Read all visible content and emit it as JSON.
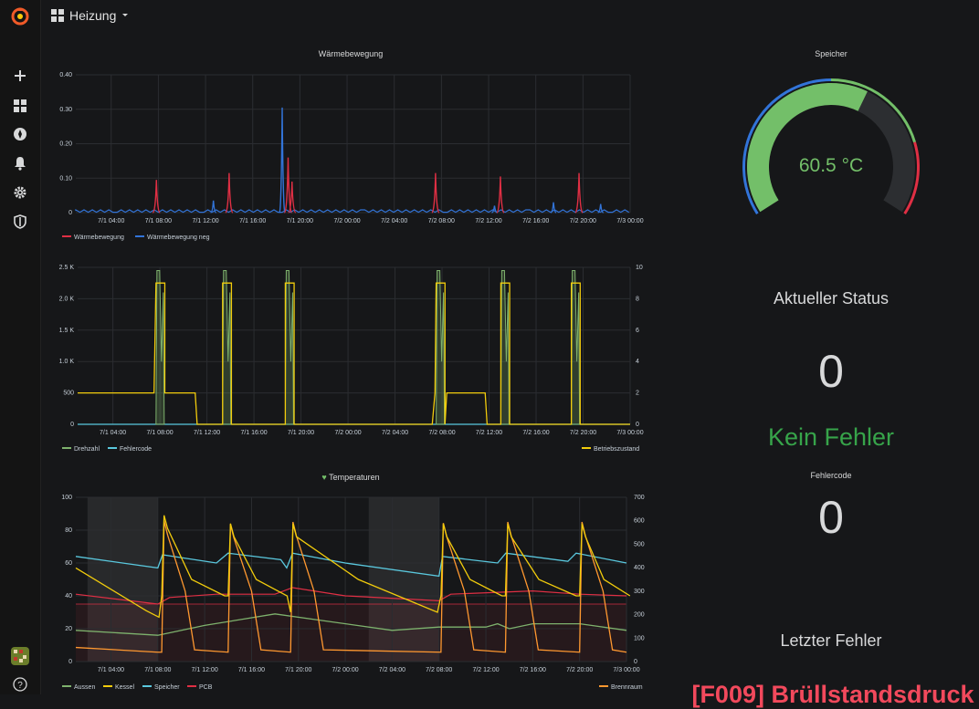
{
  "app": {
    "dashboard_title": "Heizung"
  },
  "sidebar": {
    "icons": [
      "grafana-logo-icon",
      "plus-icon",
      "dashboards-icon",
      "explore-icon",
      "alerting-icon",
      "gear-icon",
      "shield-icon",
      "avatar",
      "help-icon"
    ]
  },
  "colors": {
    "red": "#e02f44",
    "blue": "#3274d9",
    "green": "#73bf69",
    "yellow": "#f2cc0c",
    "cyan": "#5ac8de",
    "orange": "#ff9830",
    "olive": "#7eb26d"
  },
  "panels": {
    "waerme": {
      "title": "Wärmebewegung",
      "y_ticks": [
        "0.40",
        "0.30",
        "0.20",
        "0.10",
        "0"
      ],
      "x_ticks": [
        "7/1 04:00",
        "7/1 08:00",
        "7/1 12:00",
        "7/1 16:00",
        "7/1 20:00",
        "7/2 00:00",
        "7/2 04:00",
        "7/2 08:00",
        "7/2 12:00",
        "7/2 16:00",
        "7/2 20:00",
        "7/3 00:00"
      ],
      "legend": [
        "Wärmebewegung",
        "Wärmebewegung neg"
      ]
    },
    "betrieb": {
      "y_ticks_left": [
        "2.5 K",
        "2.0 K",
        "1.5 K",
        "1.0 K",
        "500",
        "0"
      ],
      "y_ticks_right": [
        "10",
        "8",
        "6",
        "4",
        "2",
        "0"
      ],
      "x_ticks": [
        "7/1 04:00",
        "7/1 08:00",
        "7/1 12:00",
        "7/1 16:00",
        "7/1 20:00",
        "7/2 00:00",
        "7/2 04:00",
        "7/2 08:00",
        "7/2 12:00",
        "7/2 16:00",
        "7/2 20:00",
        "7/3 00:00"
      ],
      "legend_left": [
        "Drehzahl",
        "Fehlercode"
      ],
      "legend_right": "Betriebszustand"
    },
    "temps": {
      "title": "Temperaturen",
      "y_ticks_left": [
        "100",
        "80",
        "60",
        "40",
        "20",
        "0"
      ],
      "y_ticks_right": [
        "700",
        "600",
        "500",
        "400",
        "300",
        "200",
        "100",
        "0"
      ],
      "x_ticks": [
        "7/1 04:00",
        "7/1 08:00",
        "7/1 12:00",
        "7/1 16:00",
        "7/1 20:00",
        "7/2 00:00",
        "7/2 04:00",
        "7/2 08:00",
        "7/2 12:00",
        "7/2 16:00",
        "7/2 20:00",
        "7/3 00:00"
      ],
      "legend_left": [
        "Aussen",
        "Kessel",
        "Speicher",
        "PCB"
      ],
      "legend_right": "Brennraum"
    }
  },
  "gauge": {
    "title": "Speicher",
    "value": 60.5,
    "display": "60.5 °C",
    "min": 0,
    "max": 100
  },
  "status": {
    "title": "Aktueller Status",
    "value": "0",
    "text": "Kein Fehler"
  },
  "fehlercode": {
    "title": "Fehlercode",
    "value": "0"
  },
  "letzter": {
    "title": "Letzter Fehler",
    "value": "[F009] Brüllstandsdruck"
  },
  "chart_data": [
    {
      "type": "line",
      "title": "Wärmebewegung",
      "ylim": [
        0,
        0.4
      ],
      "x_range": [
        "7/1 01:00",
        "7/3 00:00"
      ],
      "series": [
        {
          "name": "Wärmebewegung",
          "peaks": [
            {
              "x": "7/1 07:50",
              "y": 0.095
            },
            {
              "x": "7/1 14:00",
              "y": 0.115
            },
            {
              "x": "7/1 19:00",
              "y": 0.16
            },
            {
              "x": "7/1 19:20",
              "y": 0.09
            },
            {
              "x": "7/2 07:30",
              "y": 0.115
            },
            {
              "x": "7/2 13:00",
              "y": 0.105
            },
            {
              "x": "7/2 19:40",
              "y": 0.115
            }
          ]
        },
        {
          "name": "Wärmebewegung neg",
          "peaks": [
            {
              "x": "7/1 18:30",
              "y": 0.305
            },
            {
              "x": "7/1 12:40",
              "y": 0.035
            },
            {
              "x": "7/2 12:30",
              "y": 0.02
            },
            {
              "x": "7/2 17:30",
              "y": 0.03
            },
            {
              "x": "7/2 21:30",
              "y": 0.025
            }
          ]
        }
      ]
    },
    {
      "type": "line",
      "ylim_left": [
        0,
        2500
      ],
      "ylim_right": [
        0,
        10
      ],
      "series": [
        {
          "name": "Drehzahl",
          "axis": "left",
          "peak_value": 2450,
          "bursts": [
            "7/1 07:40",
            "7/1 13:20",
            "7/1 18:40",
            "7/2 07:30",
            "7/2 13:00",
            "7/2 19:00"
          ]
        },
        {
          "name": "Fehlercode",
          "axis": "left",
          "value": 0
        },
        {
          "name": "Betriebszustand",
          "axis": "right",
          "levels": [
            2,
            9,
            0
          ]
        }
      ]
    },
    {
      "type": "line",
      "title": "Temperaturen",
      "ylim_left": [
        0,
        100
      ],
      "ylim_right": [
        0,
        700
      ],
      "threshold_left": 35,
      "series": [
        {
          "name": "Aussen",
          "axis": "left",
          "range": [
            16,
            30
          ]
        },
        {
          "name": "Kessel",
          "axis": "left",
          "peaks": [
            89,
            84,
            84,
            84,
            84,
            84
          ],
          "range": [
            27,
            89
          ]
        },
        {
          "name": "Speicher",
          "axis": "left",
          "range": [
            52,
            66
          ]
        },
        {
          "name": "PCB",
          "axis": "left",
          "range": [
            35,
            45
          ]
        },
        {
          "name": "Brennraum",
          "axis": "right",
          "peaks": [
            600,
            585,
            595,
            590,
            595,
            595
          ],
          "baseline": 40
        }
      ]
    }
  ]
}
